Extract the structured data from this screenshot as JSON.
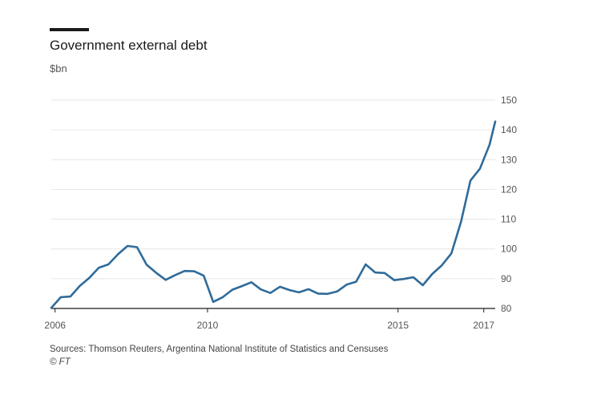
{
  "header": {
    "title": "Government external debt",
    "subtitle": "$bn"
  },
  "footer": {
    "source": "Sources: Thomson Reuters, Argentina National Institute of Statistics and Censuses",
    "credit": "© FT"
  },
  "colors": {
    "line": "#2f6b9a",
    "grid": "#e6e6e6",
    "axis": "#1a1a1a",
    "accent": "#1a1a1a"
  },
  "chart_data": {
    "type": "line",
    "title": "Government external debt",
    "ylabel": "$bn",
    "ylim": [
      80,
      150
    ],
    "y_ticks": [
      80,
      90,
      100,
      110,
      120,
      130,
      140,
      150
    ],
    "y_axis_side": "right",
    "xlim": [
      2005.9,
      2017.55
    ],
    "x_ticks": [
      {
        "value": 2006,
        "label": "2006"
      },
      {
        "value": 2010,
        "label": "2010"
      },
      {
        "value": 2015,
        "label": "2015"
      },
      {
        "value": 2017.25,
        "label": "2017"
      }
    ],
    "grid": "horizontal",
    "series": [
      {
        "color": "#2f6b9a",
        "x": [
          2005.9,
          2006.15,
          2006.4,
          2006.65,
          2006.9,
          2007.15,
          2007.4,
          2007.65,
          2007.9,
          2008.15,
          2008.4,
          2008.65,
          2008.9,
          2009.15,
          2009.4,
          2009.65,
          2009.9,
          2010.15,
          2010.4,
          2010.65,
          2010.9,
          2011.15,
          2011.4,
          2011.65,
          2011.9,
          2012.15,
          2012.4,
          2012.65,
          2012.9,
          2013.15,
          2013.4,
          2013.65,
          2013.9,
          2014.15,
          2014.4,
          2014.65,
          2014.9,
          2015.15,
          2015.4,
          2015.65,
          2015.9,
          2016.15,
          2016.4,
          2016.65,
          2016.9,
          2017.15,
          2017.4,
          2017.55
        ],
        "y": [
          80.2,
          83.8,
          84.0,
          87.6,
          90.3,
          93.7,
          94.8,
          98.2,
          101.0,
          100.6,
          94.7,
          92.0,
          89.6,
          91.2,
          92.6,
          92.5,
          91.0,
          82.2,
          83.8,
          86.3,
          87.5,
          88.8,
          86.4,
          85.2,
          87.3,
          86.2,
          85.4,
          86.5,
          85.0,
          84.9,
          85.7,
          88.0,
          89.0,
          94.8,
          92.1,
          91.9,
          89.5,
          89.9,
          90.5,
          87.8,
          91.6,
          94.5,
          98.5,
          109.0,
          123.0,
          127.0,
          135.0,
          142.8
        ]
      }
    ]
  }
}
